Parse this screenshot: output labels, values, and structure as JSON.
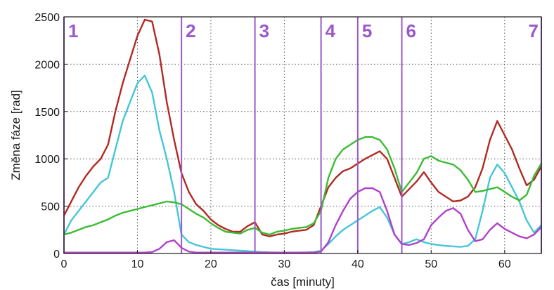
{
  "chart_data": {
    "type": "line",
    "title": "",
    "xlabel": "čas [minuty]",
    "ylabel": "Změna fáze [rad]",
    "xlim": [
      0,
      65
    ],
    "ylim": [
      0,
      2500
    ],
    "xticks": [
      0,
      10,
      20,
      30,
      40,
      50,
      60
    ],
    "yticks": [
      0,
      500,
      1000,
      1500,
      2000,
      2500
    ],
    "grid": true,
    "legend": "none",
    "phase_color": "#9b59c9",
    "phases": [
      {
        "label": "1",
        "x": 0
      },
      {
        "label": "2",
        "x": 16
      },
      {
        "label": "3",
        "x": 26
      },
      {
        "label": "4",
        "x": 35
      },
      {
        "label": "5",
        "x": 40
      },
      {
        "label": "6",
        "x": 46
      },
      {
        "label": "7",
        "x": 65
      }
    ],
    "series": [
      {
        "color": "#b22a22",
        "x": [
          0,
          1,
          2,
          3,
          4,
          5,
          6,
          7,
          8,
          9,
          10,
          11,
          12,
          13,
          14,
          15,
          16,
          17,
          18,
          19,
          20,
          21,
          22,
          23,
          24,
          25,
          26,
          27,
          28,
          29,
          30,
          31,
          32,
          33,
          34,
          35,
          36,
          37,
          38,
          39,
          40,
          41,
          42,
          43,
          44,
          45,
          46,
          47,
          48,
          49,
          50,
          51,
          52,
          53,
          54,
          55,
          56,
          57,
          58,
          59,
          60,
          61,
          62,
          63,
          64,
          65
        ],
        "values": [
          400,
          550,
          700,
          820,
          920,
          1000,
          1150,
          1500,
          1800,
          2050,
          2300,
          2470,
          2450,
          2100,
          1600,
          1200,
          850,
          650,
          520,
          450,
          360,
          300,
          260,
          230,
          230,
          290,
          330,
          200,
          180,
          200,
          210,
          230,
          240,
          250,
          300,
          500,
          700,
          800,
          870,
          900,
          950,
          1000,
          1040,
          1080,
          1000,
          800,
          600,
          680,
          760,
          860,
          750,
          650,
          600,
          550,
          560,
          600,
          700,
          900,
          1200,
          1400,
          1250,
          1100,
          900,
          720,
          780,
          920
        ]
      },
      {
        "color": "#45c6d8",
        "x": [
          0,
          1,
          2,
          3,
          4,
          5,
          6,
          7,
          8,
          9,
          10,
          11,
          12,
          13,
          14,
          15,
          16,
          17,
          18,
          19,
          20,
          21,
          22,
          23,
          24,
          25,
          26,
          27,
          28,
          29,
          30,
          31,
          32,
          33,
          34,
          35,
          36,
          37,
          38,
          39,
          40,
          41,
          42,
          43,
          44,
          45,
          46,
          47,
          48,
          49,
          50,
          51,
          52,
          53,
          54,
          55,
          56,
          57,
          58,
          59,
          60,
          61,
          62,
          63,
          64,
          65
        ],
        "values": [
          200,
          350,
          450,
          550,
          650,
          750,
          800,
          1100,
          1400,
          1600,
          1800,
          1880,
          1700,
          1300,
          1000,
          650,
          200,
          120,
          90,
          70,
          50,
          45,
          40,
          35,
          30,
          25,
          20,
          15,
          12,
          10,
          10,
          10,
          10,
          12,
          15,
          30,
          100,
          180,
          250,
          300,
          350,
          400,
          450,
          490,
          380,
          200,
          100,
          120,
          150,
          120,
          100,
          90,
          80,
          75,
          70,
          80,
          150,
          450,
          800,
          940,
          850,
          700,
          550,
          350,
          220,
          300
        ]
      },
      {
        "color": "#3cbb33",
        "x": [
          0,
          1,
          2,
          3,
          4,
          5,
          6,
          7,
          8,
          9,
          10,
          11,
          12,
          13,
          14,
          15,
          16,
          17,
          18,
          19,
          20,
          21,
          22,
          23,
          24,
          25,
          26,
          27,
          28,
          29,
          30,
          31,
          32,
          33,
          34,
          35,
          36,
          37,
          38,
          39,
          40,
          41,
          42,
          43,
          44,
          45,
          46,
          47,
          48,
          49,
          50,
          51,
          52,
          53,
          54,
          55,
          56,
          57,
          58,
          59,
          60,
          61,
          62,
          63,
          64,
          65
        ],
        "values": [
          200,
          220,
          250,
          280,
          300,
          330,
          360,
          400,
          430,
          450,
          470,
          490,
          510,
          530,
          550,
          540,
          520,
          470,
          420,
          380,
          320,
          270,
          230,
          220,
          210,
          250,
          270,
          220,
          200,
          230,
          240,
          260,
          270,
          280,
          320,
          450,
          800,
          1000,
          1100,
          1150,
          1200,
          1230,
          1230,
          1200,
          1100,
          900,
          650,
          750,
          850,
          1000,
          1030,
          980,
          960,
          940,
          880,
          780,
          650,
          660,
          680,
          700,
          650,
          600,
          560,
          620,
          820,
          950
        ]
      },
      {
        "color": "#b041c9",
        "x": [
          0,
          1,
          2,
          3,
          4,
          5,
          6,
          7,
          8,
          9,
          10,
          11,
          12,
          13,
          14,
          15,
          16,
          17,
          18,
          19,
          20,
          21,
          22,
          23,
          24,
          25,
          26,
          27,
          28,
          29,
          30,
          31,
          32,
          33,
          34,
          35,
          36,
          37,
          38,
          39,
          40,
          41,
          42,
          43,
          44,
          45,
          46,
          47,
          48,
          49,
          50,
          51,
          52,
          53,
          54,
          55,
          56,
          57,
          58,
          59,
          60,
          61,
          62,
          63,
          64,
          65
        ],
        "values": [
          10,
          10,
          10,
          10,
          10,
          10,
          10,
          10,
          10,
          10,
          10,
          10,
          15,
          50,
          120,
          140,
          60,
          20,
          10,
          10,
          10,
          10,
          10,
          10,
          10,
          10,
          10,
          10,
          10,
          10,
          10,
          10,
          10,
          10,
          10,
          20,
          120,
          300,
          450,
          580,
          650,
          690,
          690,
          650,
          450,
          200,
          100,
          90,
          110,
          150,
          300,
          380,
          450,
          480,
          420,
          250,
          130,
          150,
          250,
          320,
          260,
          220,
          180,
          160,
          200,
          280
        ]
      }
    ]
  }
}
